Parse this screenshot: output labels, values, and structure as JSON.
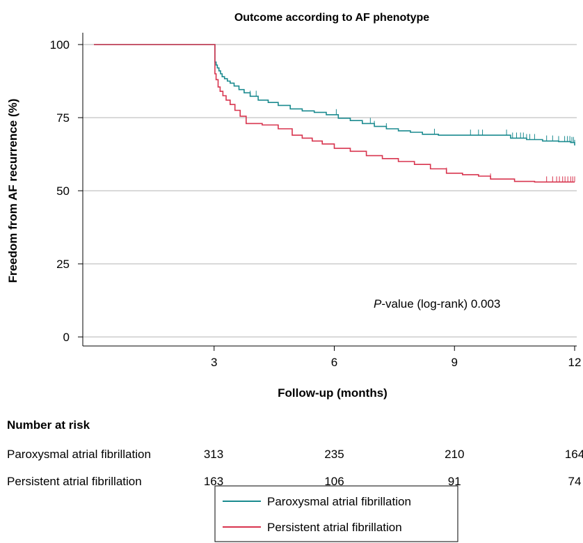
{
  "chart_data": {
    "type": "line",
    "subtype": "kaplan-meier",
    "title": "Outcome according to AF phenotype",
    "xlabel": "Follow-up (months)",
    "ylabel": "Freedom from AF recurrence (%)",
    "xlim": [
      0,
      12
    ],
    "ylim": [
      0,
      100
    ],
    "x_ticks": [
      3,
      6,
      9,
      12
    ],
    "y_ticks": [
      0,
      25,
      50,
      75,
      100
    ],
    "grid": "horizontal",
    "annotation": {
      "italic": "P",
      "text": "-value (log-rank) 0.003"
    },
    "series": [
      {
        "name": "Paroxysmal atrial fibrillation",
        "color": "#1a8a8f",
        "x": [
          0,
          3.0,
          3.02,
          3.05,
          3.08,
          3.12,
          3.16,
          3.2,
          3.26,
          3.33,
          3.4,
          3.5,
          3.62,
          3.75,
          3.9,
          4.1,
          4.35,
          4.6,
          4.9,
          5.2,
          5.5,
          5.8,
          6.1,
          6.4,
          6.7,
          7.0,
          7.3,
          7.6,
          7.9,
          8.2,
          8.6,
          9.0,
          9.5,
          10.0,
          10.4,
          10.8,
          11.2,
          11.6,
          11.9,
          12.0
        ],
        "y": [
          100,
          100,
          94,
          93,
          92,
          91,
          90,
          89,
          88.3,
          87.5,
          86.8,
          85.8,
          84.6,
          83.5,
          82.3,
          81.0,
          80.2,
          79.2,
          78.0,
          77.3,
          76.8,
          76.0,
          74.8,
          74.0,
          73.0,
          72.0,
          71.2,
          70.5,
          70.0,
          69.3,
          69.0,
          69.0,
          69.0,
          69.0,
          68.0,
          67.5,
          67.0,
          66.8,
          66.5,
          65.5
        ],
        "censor_x": [
          3.9,
          4.05,
          6.05,
          6.9,
          7.0,
          7.3,
          8.5,
          9.4,
          9.6,
          9.7,
          10.3,
          10.45,
          10.55,
          10.65,
          10.72,
          10.8,
          10.88,
          11.0,
          11.3,
          11.45,
          11.6,
          11.75,
          11.82,
          11.88,
          11.93,
          11.97,
          12.0
        ],
        "at_risk": [
          313,
          235,
          210,
          164
        ]
      },
      {
        "name": "Persistent atrial fibrillation",
        "color": "#d8344e",
        "x": [
          0,
          3.0,
          3.02,
          3.05,
          3.1,
          3.15,
          3.22,
          3.3,
          3.4,
          3.52,
          3.65,
          3.8,
          4.2,
          4.6,
          4.95,
          5.2,
          5.45,
          5.7,
          6.0,
          6.4,
          6.8,
          7.2,
          7.6,
          8.0,
          8.4,
          8.8,
          9.2,
          9.6,
          9.9,
          10.2,
          10.5,
          11.0,
          11.3,
          12.0
        ],
        "y": [
          100,
          100,
          90,
          88,
          85.5,
          84,
          82.5,
          81,
          79.5,
          77.5,
          75.5,
          73,
          72.5,
          71.2,
          69,
          68,
          67,
          66,
          64.5,
          63.5,
          62,
          61,
          60,
          59,
          57.5,
          56,
          55.5,
          55,
          54,
          54,
          53.2,
          53,
          53,
          53
        ],
        "censor_x": [
          8.8,
          9.9,
          11.3,
          11.45,
          11.55,
          11.62,
          11.7,
          11.76,
          11.83,
          11.9,
          11.95,
          12.0
        ],
        "at_risk": [
          163,
          106,
          91,
          74
        ]
      }
    ],
    "risk_table": {
      "header": "Number at risk",
      "times": [
        0,
        6,
        9,
        12
      ]
    },
    "legend_position": "bottom-center"
  }
}
